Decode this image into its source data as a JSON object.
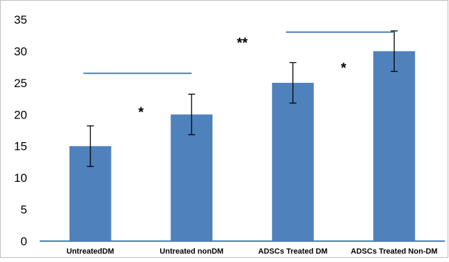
{
  "chart_data": {
    "type": "bar",
    "categories": [
      "UntreatedDM",
      "Untreated nonDM",
      "ADSCs Treated DM",
      "ADSCs Treated Non-DM"
    ],
    "values": [
      15,
      20,
      25,
      30
    ],
    "error": [
      3.2,
      3.2,
      3.2,
      3.2
    ],
    "ylim": [
      0,
      35
    ],
    "yticks": [
      0,
      5,
      10,
      15,
      20,
      25,
      30,
      35
    ],
    "grid": false,
    "legend": "none",
    "title": "",
    "xlabel": "",
    "ylabel": "",
    "colors": {
      "bar": "#4F81BD",
      "bracket": "#4A7EBB",
      "error": "#000000",
      "axis": "#4A7EBB"
    },
    "annotations": [
      {
        "text": "*",
        "x_between": [
          0,
          1
        ],
        "y": 20.5
      },
      {
        "text": "**",
        "x_between": [
          1,
          2
        ],
        "y": 31.5
      },
      {
        "text": "*",
        "x_between": [
          2,
          3
        ],
        "y": 27.5
      }
    ],
    "significance_lines": [
      {
        "from": 0,
        "to": 1,
        "y": 26.5
      },
      {
        "from": 2,
        "to": 3,
        "y": 33
      }
    ]
  }
}
